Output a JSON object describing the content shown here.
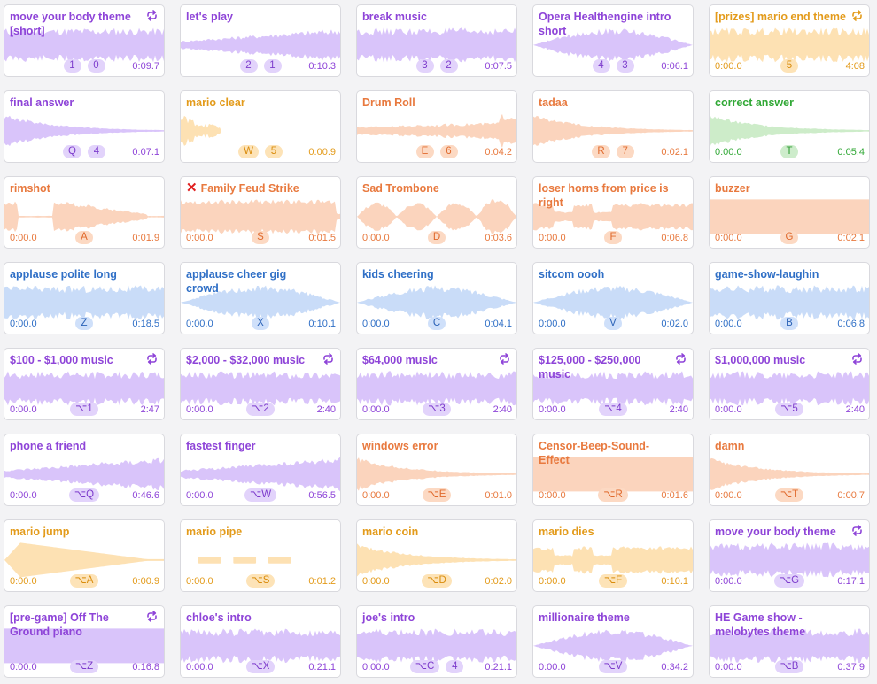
{
  "colors": {
    "purple": {
      "wave": "#d9c4fa",
      "text": "#8e44d8"
    },
    "orange": {
      "wave": "#fbd4bd",
      "text": "#e8793e"
    },
    "yellow": {
      "wave": "#fde1b3",
      "text": "#e39b1b"
    },
    "green": {
      "wave": "#cdecc9",
      "text": "#31a836"
    },
    "blue": {
      "wave": "#c9dcf8",
      "text": "#2f6fc6"
    }
  },
  "sounds": [
    {
      "title": "move your body theme [short]",
      "color": "purple",
      "loop": true,
      "keys": [
        "1",
        "0"
      ],
      "start": "",
      "duration": "0:09.7",
      "wave": "dense"
    },
    {
      "title": "let's play",
      "color": "purple",
      "loop": false,
      "keys": [
        "2",
        "1"
      ],
      "start": "",
      "duration": "0:10.3",
      "wave": "ramp"
    },
    {
      "title": "break music",
      "color": "purple",
      "loop": false,
      "keys": [
        "3",
        "2"
      ],
      "start": "",
      "duration": "0:07.5",
      "wave": "dense"
    },
    {
      "title": "Opera Healthengine intro short",
      "color": "purple",
      "loop": false,
      "keys": [
        "4",
        "3"
      ],
      "start": "",
      "duration": "0:06.1",
      "wave": "swell"
    },
    {
      "title": "[prizes] mario end theme",
      "color": "yellow",
      "loop": true,
      "keys": [
        "5"
      ],
      "start": "0:00.0",
      "duration": "4:08",
      "wave": "dense"
    },
    {
      "title": "final answer",
      "color": "purple",
      "loop": false,
      "keys": [
        "Q",
        "4"
      ],
      "start": "",
      "duration": "0:07.1",
      "wave": "decay"
    },
    {
      "title": "mario clear",
      "color": "yellow",
      "loop": false,
      "keys": [
        "W",
        "5"
      ],
      "start": "",
      "duration": "0:00.9",
      "wave": "short"
    },
    {
      "title": "Drum Roll",
      "color": "orange",
      "loop": false,
      "keys": [
        "E",
        "6"
      ],
      "start": "",
      "duration": "0:04.2",
      "wave": "roll"
    },
    {
      "title": "tadaa",
      "color": "orange",
      "loop": false,
      "keys": [
        "R",
        "7"
      ],
      "start": "",
      "duration": "0:02.1",
      "wave": "decay"
    },
    {
      "title": "correct answer",
      "color": "green",
      "loop": false,
      "keys": [
        "T"
      ],
      "start": "0:00.0",
      "duration": "0:05.4",
      "wave": "decay"
    },
    {
      "title": "rimshot",
      "color": "orange",
      "loop": false,
      "keys": [
        "A"
      ],
      "start": "0:00.0",
      "duration": "0:01.9",
      "wave": "hits"
    },
    {
      "title": "Family Feud Strike",
      "color": "orange",
      "loop": false,
      "keys": [
        "S"
      ],
      "start": "0:00.0",
      "duration": "0:01.5",
      "wave": "buzz",
      "mark": "✕"
    },
    {
      "title": "Sad Trombone",
      "color": "orange",
      "loop": false,
      "keys": [
        "D"
      ],
      "start": "0:00.0",
      "duration": "0:03.6",
      "wave": "notes4"
    },
    {
      "title": "loser horns from price is right",
      "color": "orange",
      "loop": false,
      "keys": [
        "F"
      ],
      "start": "0:00.0",
      "duration": "0:06.8",
      "wave": "blocks"
    },
    {
      "title": "buzzer",
      "color": "orange",
      "loop": false,
      "keys": [
        "G"
      ],
      "start": "0:00.0",
      "duration": "0:02.1",
      "wave": "block"
    },
    {
      "title": "applause polite long",
      "color": "blue",
      "loop": false,
      "keys": [
        "Z"
      ],
      "start": "0:00.0",
      "duration": "0:18.5",
      "wave": "dense"
    },
    {
      "title": "applause cheer gig crowd",
      "color": "blue",
      "loop": false,
      "keys": [
        "X"
      ],
      "start": "0:00.0",
      "duration": "0:10.1",
      "wave": "swell"
    },
    {
      "title": "kids cheering",
      "color": "blue",
      "loop": false,
      "keys": [
        "C"
      ],
      "start": "0:00.0",
      "duration": "0:04.1",
      "wave": "swell"
    },
    {
      "title": "sitcom oooh",
      "color": "blue",
      "loop": false,
      "keys": [
        "V"
      ],
      "start": "0:00.0",
      "duration": "0:02.0",
      "wave": "swell"
    },
    {
      "title": "game-show-laughin",
      "color": "blue",
      "loop": false,
      "keys": [
        "B"
      ],
      "start": "0:00.0",
      "duration": "0:06.8",
      "wave": "dense"
    },
    {
      "title": "$100 - $1,000 music",
      "color": "purple",
      "loop": true,
      "keys": [
        "⌥1"
      ],
      "start": "0:00.0",
      "duration": "2:47",
      "wave": "dense"
    },
    {
      "title": "$2,000 - $32,000 music",
      "color": "purple",
      "loop": true,
      "keys": [
        "⌥2"
      ],
      "start": "0:00.0",
      "duration": "2:40",
      "wave": "dense"
    },
    {
      "title": "$64,000 music",
      "color": "purple",
      "loop": true,
      "keys": [
        "⌥3"
      ],
      "start": "0:00.0",
      "duration": "2:40",
      "wave": "dense"
    },
    {
      "title": "$125,000 - $250,000 music",
      "color": "purple",
      "loop": true,
      "keys": [
        "⌥4"
      ],
      "start": "0:00.0",
      "duration": "2:40",
      "wave": "dense"
    },
    {
      "title": "$1,000,000 music",
      "color": "purple",
      "loop": true,
      "keys": [
        "⌥5"
      ],
      "start": "0:00.0",
      "duration": "2:40",
      "wave": "dense"
    },
    {
      "title": "phone a friend",
      "color": "purple",
      "loop": false,
      "keys": [
        "⌥Q"
      ],
      "start": "0:00.0",
      "duration": "0:46.6",
      "wave": "ramp"
    },
    {
      "title": "fastest finger",
      "color": "purple",
      "loop": false,
      "keys": [
        "⌥W"
      ],
      "start": "0:00.0",
      "duration": "0:56.5",
      "wave": "ramp"
    },
    {
      "title": "windows error",
      "color": "orange",
      "loop": false,
      "keys": [
        "⌥E"
      ],
      "start": "0:00.0",
      "duration": "0:01.0",
      "wave": "decay"
    },
    {
      "title": "Censor-Beep-Sound-Effect",
      "color": "orange",
      "loop": false,
      "keys": [
        "⌥R"
      ],
      "start": "0:00.0",
      "duration": "0:01.6",
      "wave": "block"
    },
    {
      "title": "damn",
      "color": "orange",
      "loop": false,
      "keys": [
        "⌥T"
      ],
      "start": "0:00.0",
      "duration": "0:00.7",
      "wave": "decay"
    },
    {
      "title": "mario jump",
      "color": "yellow",
      "loop": false,
      "keys": [
        "⌥A"
      ],
      "start": "0:00.0",
      "duration": "0:00.9",
      "wave": "jump"
    },
    {
      "title": "mario pipe",
      "color": "yellow",
      "loop": false,
      "keys": [
        "⌥S"
      ],
      "start": "0:00.0",
      "duration": "0:01.2",
      "wave": "dashes"
    },
    {
      "title": "mario coin",
      "color": "yellow",
      "loop": false,
      "keys": [
        "⌥D"
      ],
      "start": "0:00.0",
      "duration": "0:02.0",
      "wave": "decay"
    },
    {
      "title": "mario dies",
      "color": "yellow",
      "loop": false,
      "keys": [
        "⌥F"
      ],
      "start": "0:00.0",
      "duration": "0:10.1",
      "wave": "blocks"
    },
    {
      "title": "move your body theme",
      "color": "purple",
      "loop": true,
      "keys": [
        "⌥G"
      ],
      "start": "0:00.0",
      "duration": "0:17.1",
      "wave": "dense"
    },
    {
      "title": "[pre-game] Off The Ground piano",
      "color": "purple",
      "loop": true,
      "keys": [
        "⌥Z"
      ],
      "start": "0:00.0",
      "duration": "0:16.8",
      "wave": "block"
    },
    {
      "title": "chloe's intro",
      "color": "purple",
      "loop": false,
      "keys": [
        "⌥X"
      ],
      "start": "0:00.0",
      "duration": "0:21.1",
      "wave": "dense"
    },
    {
      "title": "joe's intro",
      "color": "purple",
      "loop": false,
      "keys": [
        "⌥C",
        "4"
      ],
      "start": "0:00.0",
      "duration": "0:21.1",
      "wave": "dense"
    },
    {
      "title": "millionaire theme",
      "color": "purple",
      "loop": false,
      "keys": [
        "⌥V"
      ],
      "start": "0:00.0",
      "duration": "0:34.2",
      "wave": "swell"
    },
    {
      "title": "HE Game show - melobytes theme",
      "color": "purple",
      "loop": false,
      "keys": [
        "⌥B"
      ],
      "start": "0:00.0",
      "duration": "0:37.9",
      "wave": "dense"
    }
  ]
}
